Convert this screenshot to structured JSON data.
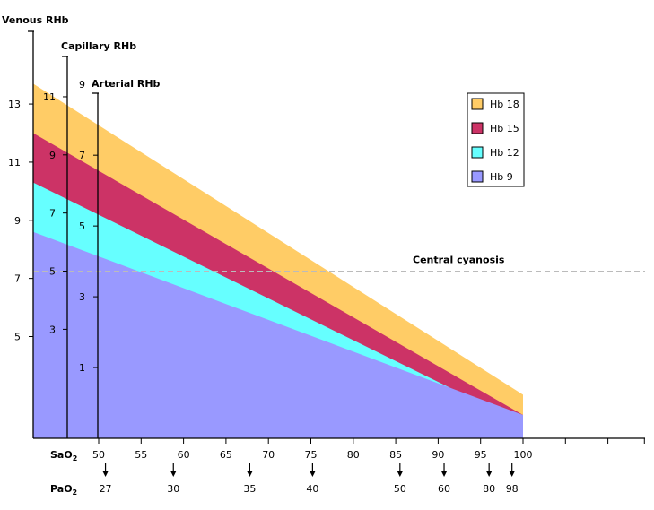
{
  "chart_data": {
    "type": "area",
    "title": "",
    "x_label": "SaO2",
    "x_range": [
      50,
      100
    ],
    "x_ticks": [
      50,
      55,
      60,
      65,
      70,
      75,
      80,
      85,
      90,
      95,
      100
    ],
    "pao2": {
      "label": "PaO2",
      "points": [
        {
          "sao2": 50.8,
          "pao2": "27"
        },
        {
          "sao2": 58.8,
          "pao2": "30"
        },
        {
          "sao2": 67.8,
          "pao2": "35"
        },
        {
          "sao2": 75.2,
          "pao2": "40"
        },
        {
          "sao2": 85.5,
          "pao2": "50"
        },
        {
          "sao2": 90.7,
          "pao2": "60"
        },
        {
          "sao2": 96.0,
          "pao2": "80"
        },
        {
          "sao2": 98.7,
          "pao2": "98"
        }
      ]
    },
    "axes": [
      {
        "name": "Venous RHb",
        "range": [
          1.5,
          15.5
        ],
        "ticks": [
          5,
          7,
          9,
          11,
          13
        ]
      },
      {
        "name": "Capillary RHb",
        "range": [
          -0.75,
          13.25
        ],
        "ticks": [
          3,
          5,
          7,
          9,
          11
        ]
      },
      {
        "name": "Arterial RHb",
        "range": [
          -1,
          10.5
        ],
        "ticks": [
          1,
          3,
          5,
          7,
          9
        ]
      }
    ],
    "series": [
      {
        "name": "Hb 18",
        "color": "#ffcc66",
        "x": [
          46,
          100
        ],
        "venous_rhb": [
          13.7,
          3.0
        ]
      },
      {
        "name": "Hb 15",
        "color": "#cc3366",
        "x": [
          46,
          100
        ],
        "venous_rhb": [
          12.0,
          2.3
        ]
      },
      {
        "name": "Hb 12",
        "color": "#66ffff",
        "x": [
          46,
          100
        ],
        "venous_rhb": [
          10.3,
          2.0
        ]
      },
      {
        "name": "Hb 9",
        "color": "#9999ff",
        "x": [
          46,
          100
        ],
        "venous_rhb": [
          8.6,
          2.3
        ]
      }
    ],
    "threshold": {
      "label": "Central cyanosis",
      "capillary_rhb": 5
    },
    "legend_position": "top-right"
  }
}
